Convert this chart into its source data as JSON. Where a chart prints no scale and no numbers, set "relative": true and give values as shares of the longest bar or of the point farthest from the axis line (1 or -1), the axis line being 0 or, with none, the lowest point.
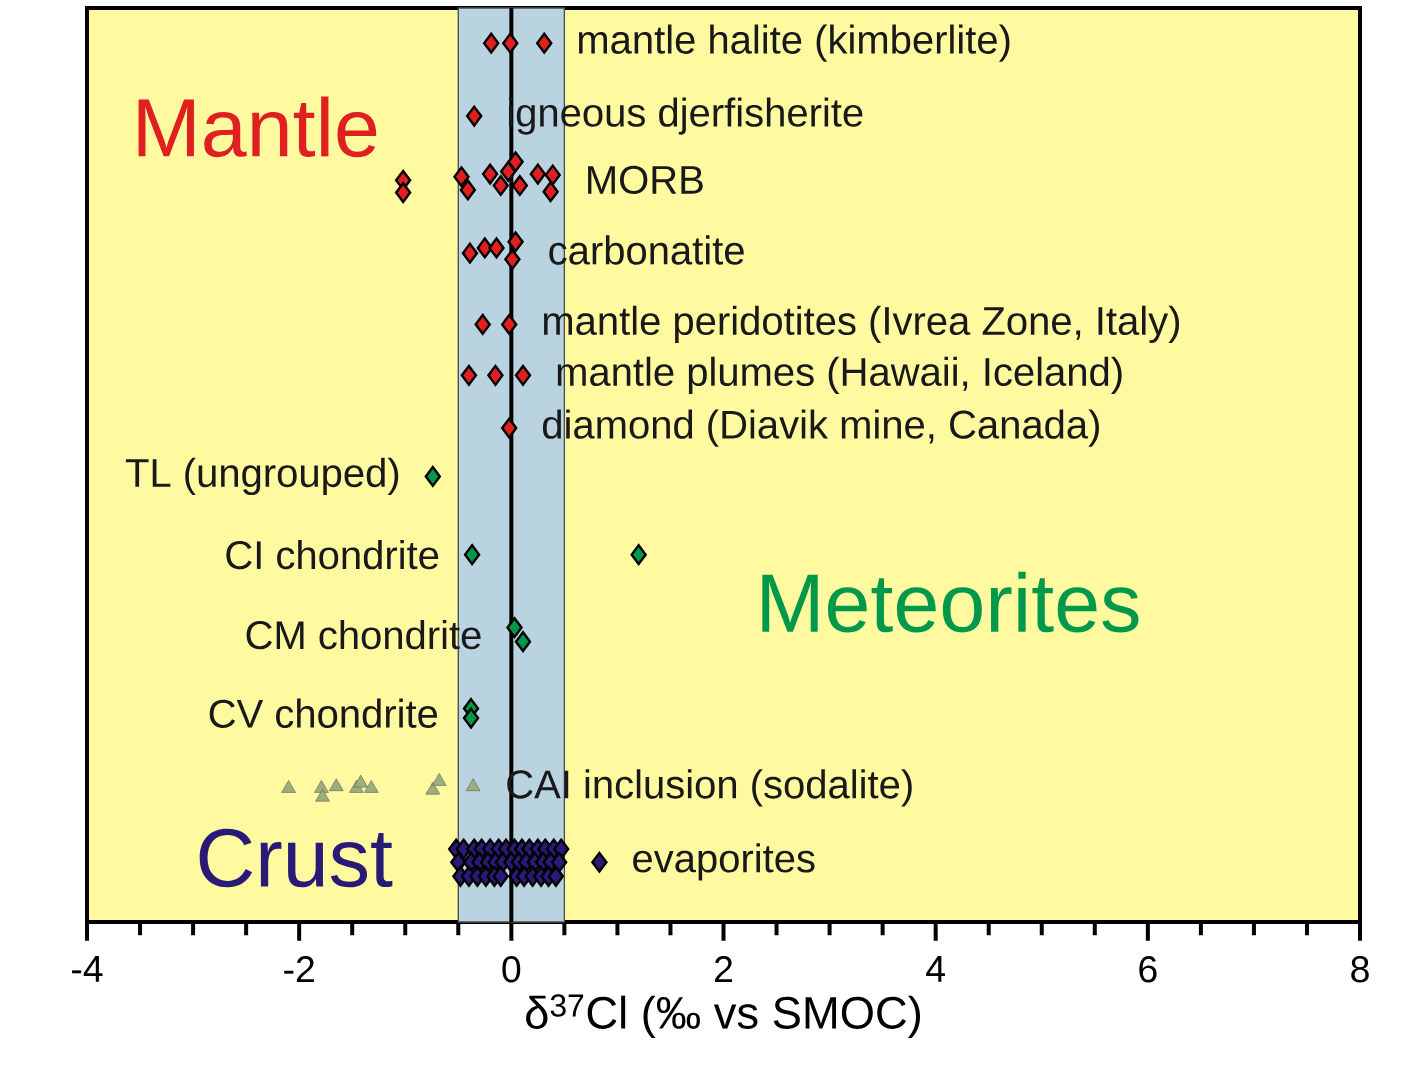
{
  "chart_data": {
    "type": "scatter",
    "xlabel": "δ$^{37}$Cl (‰ vs SMOC)",
    "relative": true,
    "xlim": [
      -4,
      8
    ],
    "xticks": [
      -4,
      -2,
      0,
      2,
      4,
      6,
      8
    ],
    "series": [
      {
        "name": "mantle halite (kimberlite)",
        "color": "#e02020",
        "marker": "diamond",
        "x": [
          -0.19,
          -0.01,
          0.31
        ],
        "values": [
          1.0,
          1.0,
          1.0
        ]
      },
      {
        "name": "igneous djerfisherite",
        "color": "#e02020",
        "marker": "diamond",
        "x": [
          -0.35
        ],
        "values": [
          0.917
        ]
      },
      {
        "name": "MORB",
        "color": "#e02020",
        "marker": "diamond",
        "x": [
          -1.02,
          -1.02,
          -0.47,
          -0.41,
          -0.2,
          -0.1,
          -0.03,
          0.04,
          0.08,
          0.25,
          0.39,
          0.37
        ],
        "values": [
          0.844,
          0.83,
          0.848,
          0.833,
          0.851,
          0.838,
          0.854,
          0.865,
          0.838,
          0.851,
          0.85,
          0.831
        ]
      },
      {
        "name": "carbonatite",
        "color": "#e02020",
        "marker": "diamond",
        "x": [
          -0.39,
          -0.25,
          -0.14,
          0.04,
          0.01
        ],
        "values": [
          0.761,
          0.767,
          0.767,
          0.774,
          0.754
        ]
      },
      {
        "name": "mantle peridotites (Ivrea Zone, Italy)",
        "color": "#e02020",
        "marker": "diamond",
        "x": [
          -0.27,
          -0.02
        ],
        "values": [
          0.68,
          0.68
        ]
      },
      {
        "name": "mantle plumes (Hawaii, Iceland)",
        "color": "#e02020",
        "marker": "diamond",
        "x": [
          -0.4,
          -0.15,
          0.11
        ],
        "values": [
          0.622,
          0.622,
          0.622
        ]
      },
      {
        "name": "diamond (Diavik mine, Canada)",
        "color": "#e02020",
        "marker": "diamond",
        "x": [
          -0.02
        ],
        "values": [
          0.562
        ]
      },
      {
        "name": "TL (ungrouped)",
        "color": "#00994c",
        "marker": "diamond",
        "x": [
          -0.74
        ],
        "values": [
          0.507
        ]
      },
      {
        "name": "CI chondrite",
        "color": "#00994c",
        "marker": "diamond",
        "x": [
          -0.37,
          1.2
        ],
        "values": [
          0.418,
          0.418
        ]
      },
      {
        "name": "CM chondrite",
        "color": "#00994c",
        "marker": "diamond",
        "x": [
          0.03,
          0.11
        ],
        "values": [
          0.335,
          0.319
        ]
      },
      {
        "name": "CV chondrite",
        "color": "#00994c",
        "marker": "diamond",
        "x": [
          -0.38,
          -0.38
        ],
        "values": [
          0.243,
          0.232
        ]
      },
      {
        "name": "evaporites",
        "color": "#2a1a78",
        "marker": "diamond",
        "x": [
          -0.52,
          -0.45,
          -0.35,
          -0.28,
          -0.2,
          -0.12,
          -0.05,
          0.03,
          0.1,
          0.17,
          0.25,
          0.32,
          0.4,
          0.47,
          -0.5,
          -0.38,
          -0.3,
          -0.22,
          -0.15,
          -0.08,
          0.0,
          0.07,
          0.14,
          0.22,
          0.3,
          0.37,
          0.45,
          -0.48,
          -0.4,
          -0.32,
          -0.24,
          -0.16,
          -0.1,
          0.05,
          0.12,
          0.2,
          0.28,
          0.35,
          0.42,
          0.83
        ],
        "values": [
          0.083,
          0.083,
          0.083,
          0.083,
          0.083,
          0.083,
          0.083,
          0.083,
          0.083,
          0.083,
          0.083,
          0.083,
          0.083,
          0.083,
          0.068,
          0.068,
          0.068,
          0.068,
          0.068,
          0.068,
          0.068,
          0.068,
          0.068,
          0.068,
          0.068,
          0.068,
          0.068,
          0.052,
          0.052,
          0.052,
          0.052,
          0.052,
          0.052,
          0.052,
          0.052,
          0.052,
          0.052,
          0.052,
          0.052,
          0.068
        ]
      },
      {
        "name": "CAI inclusion (sodalite)",
        "color": "#9caf78",
        "marker": "triangle",
        "x": [
          -2.1,
          -1.79,
          -1.78,
          -1.65,
          -1.46,
          -1.42,
          -1.32,
          -0.74,
          -0.68,
          -0.36
        ],
        "values": [
          0.152,
          0.152,
          0.142,
          0.154,
          0.152,
          0.158,
          0.152,
          0.15,
          0.16,
          0.154
        ]
      }
    ],
    "bands": [
      {
        "axis": "x",
        "from": -0.5,
        "to": 0.5,
        "color": "#b9d3e0"
      }
    ],
    "ref_lines": [
      {
        "axis": "x",
        "value": 0,
        "color": "#000000"
      }
    ],
    "annotations": [
      "Mantle",
      "Meteorites",
      "Crust"
    ]
  }
}
